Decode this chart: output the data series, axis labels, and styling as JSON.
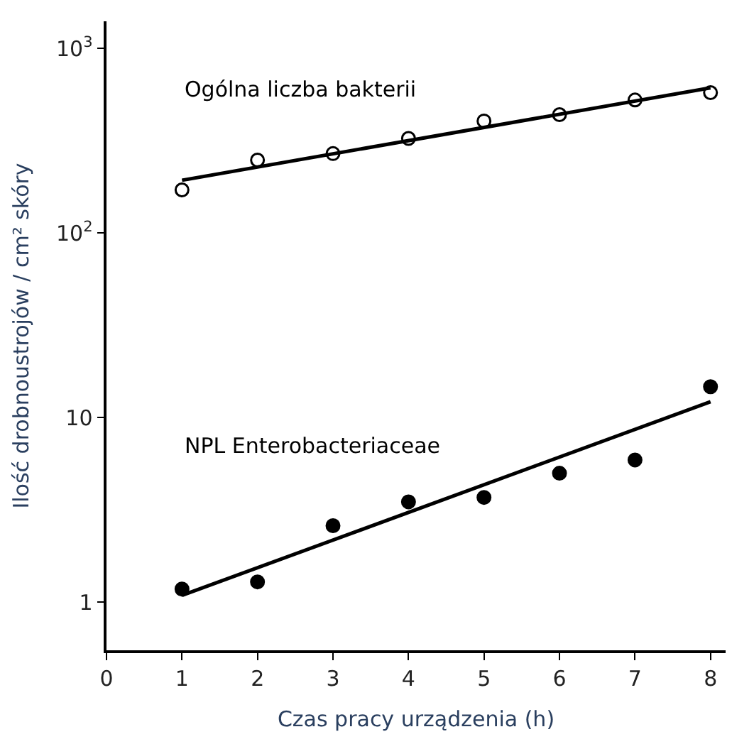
{
  "chart_data": {
    "type": "scatter",
    "xlabel": "Czas pracy urządzenia (h)",
    "ylabel": "Ilość drobnoustrojów / cm² skóry",
    "x": [
      1,
      2,
      3,
      4,
      5,
      6,
      7,
      8
    ],
    "series": [
      {
        "name": "Ogólna liczba bakterii",
        "color": "#000000",
        "values": [
          171,
          248,
          269,
          325,
          404,
          437,
          525,
          575
        ]
      },
      {
        "type": "line",
        "color": "#000000",
        "marker": "none",
        "values": [
          193,
          null,
          null,
          null,
          null,
          null,
          null,
          611
        ]
      },
      {
        "name": "NPL Enterobacteriaceae",
        "color": "#000000",
        "values": [
          1.18,
          1.29,
          2.6,
          3.5,
          3.7,
          5.0,
          5.9,
          14.7
        ]
      },
      {
        "type": "line",
        "color": "#000000",
        "marker": "none",
        "values": [
          1.09,
          null,
          null,
          null,
          null,
          null,
          null,
          12.2
        ]
      }
    ],
    "log": "y",
    "xlim": [
      0,
      8.2
    ],
    "ylim": [
      0.55,
      1400
    ],
    "xticks": [
      0,
      1,
      2,
      3,
      4,
      5,
      6,
      7,
      8
    ],
    "yticks": [
      1,
      10,
      {
        "value": 100,
        "label": "10$^{2}$"
      },
      {
        "value": 1000,
        "label": "10$^{3}$"
      }
    ],
    "grid": false,
    "legend": false,
    "marker": "circle",
    "line_style": "solid"
  }
}
